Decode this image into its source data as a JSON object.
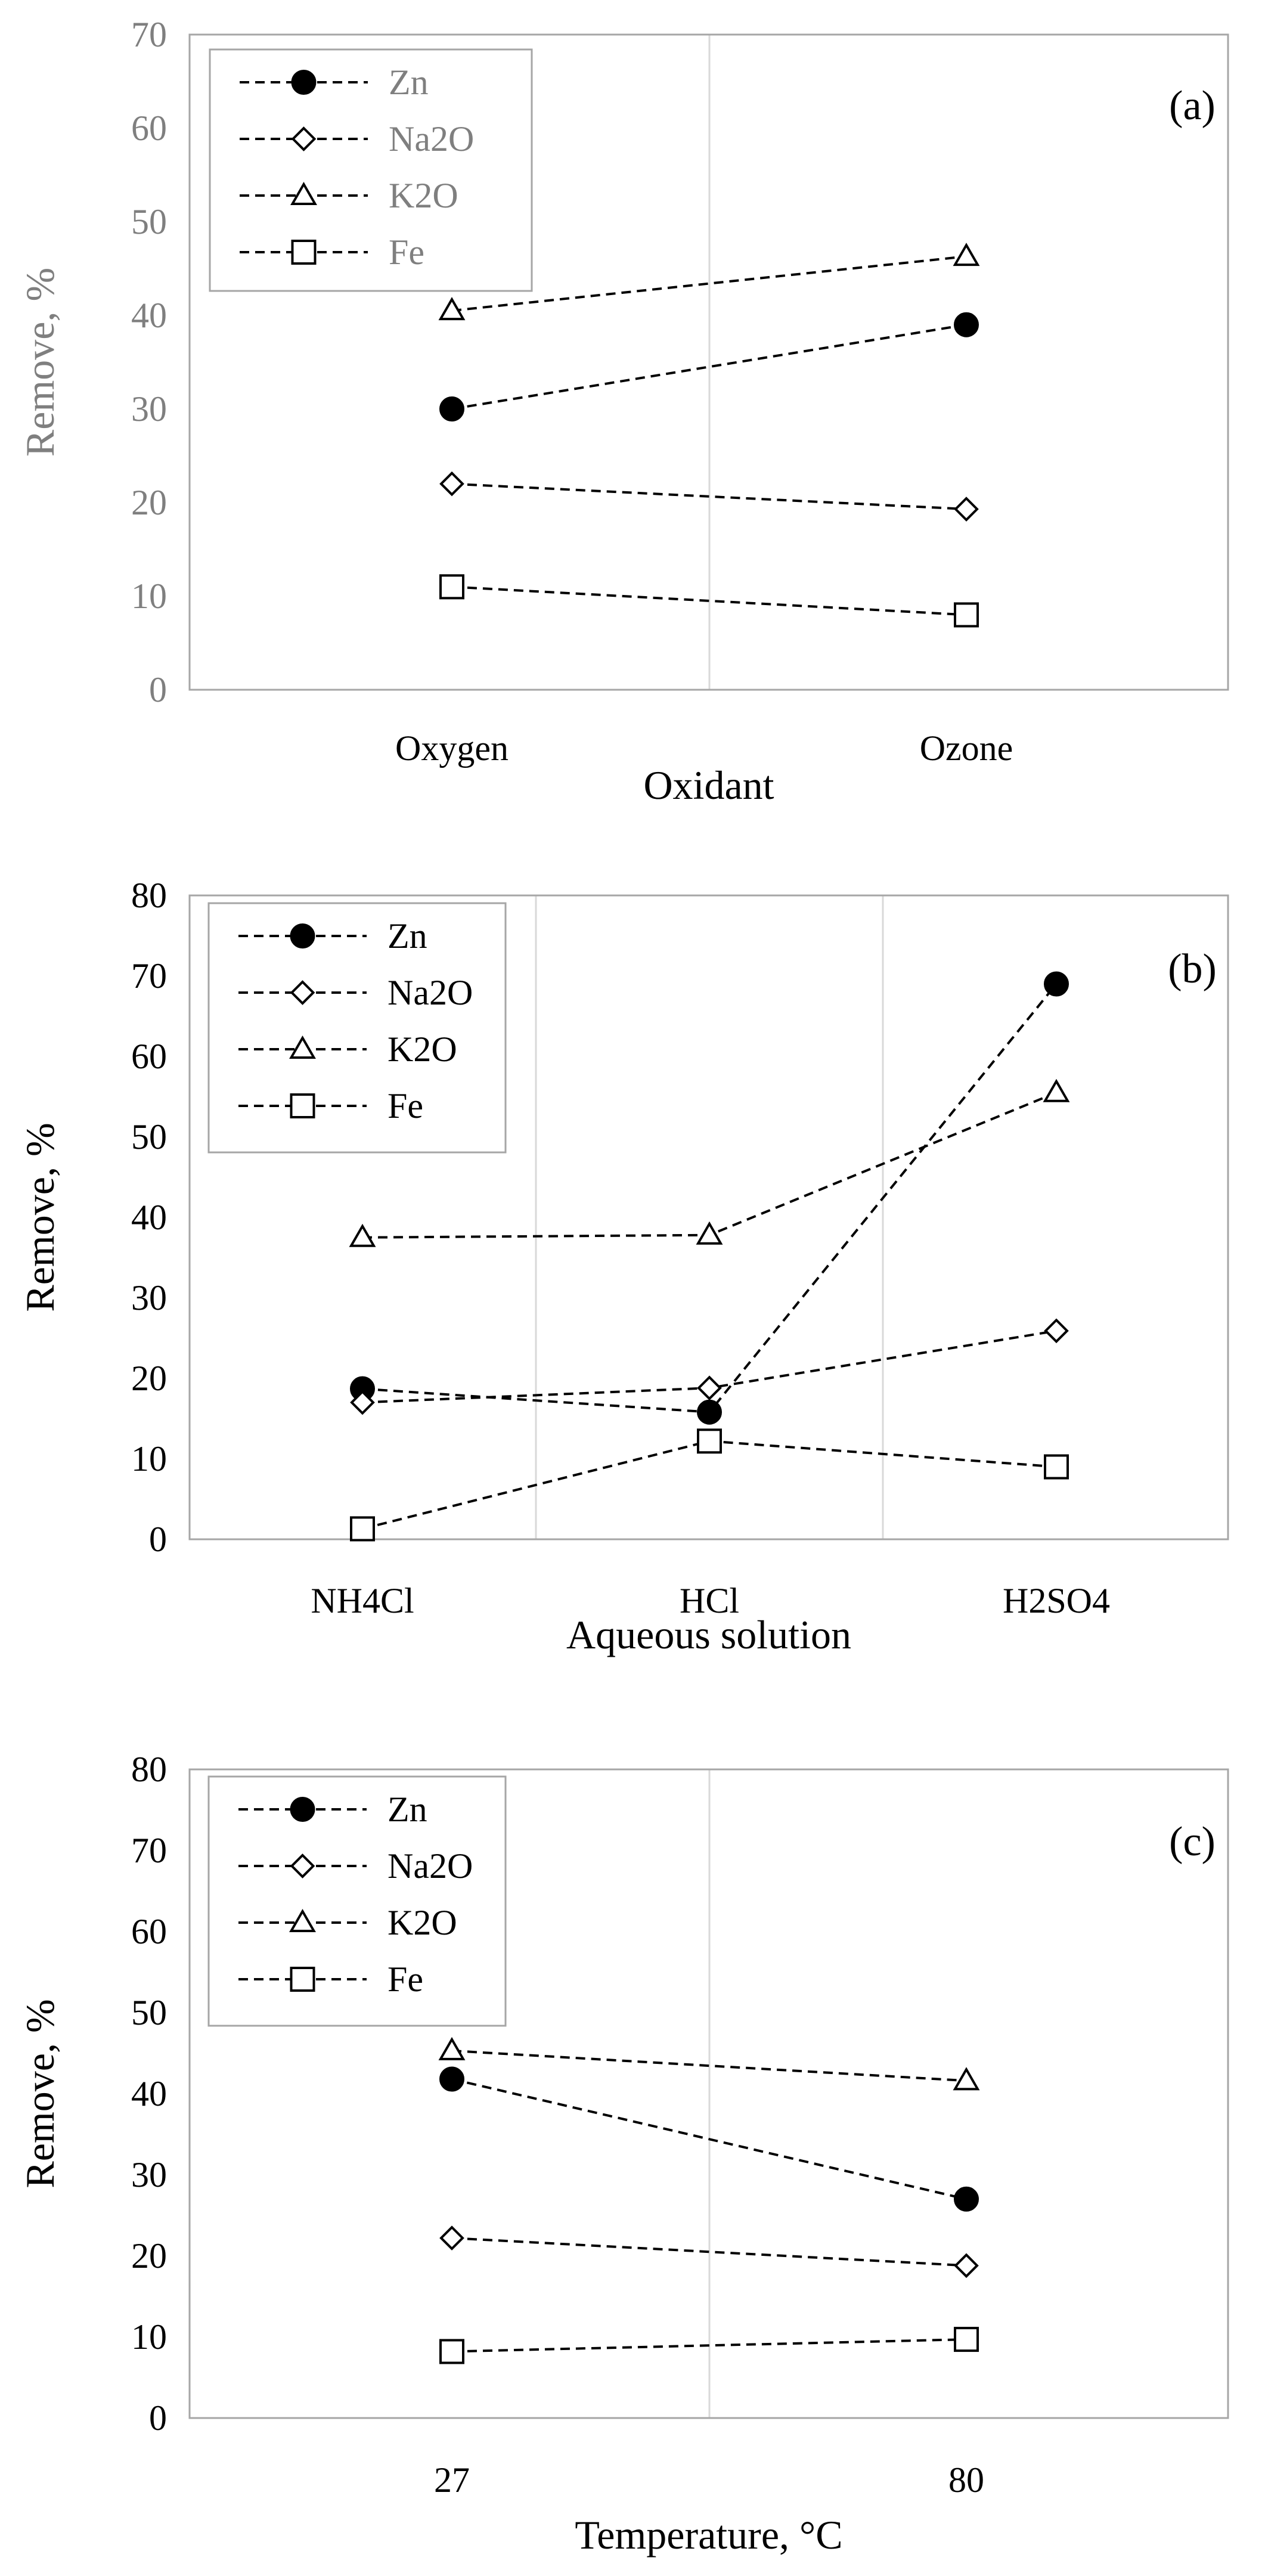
{
  "colors": {
    "frame": "#a6a6a6",
    "grid": "#d9d9d9",
    "series_line": "#000000",
    "text_dark": "#000000",
    "text_gray": "#7f7f7f",
    "marker_fill_solid": "#000000",
    "marker_fill_open": "#ffffff"
  },
  "chart_data": [
    {
      "type": "line",
      "panel_label": "(a)",
      "title": "",
      "xlabel": "Oxidant",
      "ylabel": "Remove, %",
      "categories": [
        "Oxygen",
        "Ozone"
      ],
      "ylim": [
        0,
        70
      ],
      "ytick_step": 10,
      "yticks": [
        "0",
        "10",
        "20",
        "30",
        "40",
        "50",
        "60",
        "70"
      ],
      "tick_color": "gray",
      "legend_position": "top-left",
      "series": [
        {
          "name": "Zn",
          "marker": "filled-circle",
          "values": [
            30,
            39
          ]
        },
        {
          "name": "Na2O",
          "marker": "open-diamond",
          "values": [
            22,
            19.3
          ]
        },
        {
          "name": "K2O",
          "marker": "open-triangle",
          "values": [
            40.5,
            46.3
          ]
        },
        {
          "name": "Fe",
          "marker": "open-square",
          "values": [
            11,
            8
          ]
        }
      ]
    },
    {
      "type": "line",
      "panel_label": "(b)",
      "title": "",
      "xlabel": "Aqueous solution",
      "ylabel": "Remove, %",
      "categories": [
        "NH4Cl",
        "HCl",
        "H2SO4"
      ],
      "ylim": [
        0,
        80
      ],
      "ytick_step": 10,
      "yticks": [
        "0",
        "10",
        "20",
        "30",
        "40",
        "50",
        "60",
        "70",
        "80"
      ],
      "tick_color": "dark",
      "legend_position": "top-left",
      "series": [
        {
          "name": "Zn",
          "marker": "filled-circle",
          "values": [
            18.7,
            15.8,
            69
          ]
        },
        {
          "name": "Na2O",
          "marker": "open-diamond",
          "values": [
            17,
            18.8,
            25.9
          ]
        },
        {
          "name": "K2O",
          "marker": "open-triangle",
          "values": [
            37.5,
            37.8,
            55.5
          ]
        },
        {
          "name": "Fe",
          "marker": "open-square",
          "values": [
            1.3,
            12.2,
            9
          ]
        }
      ]
    },
    {
      "type": "line",
      "panel_label": "(c)",
      "title": "",
      "xlabel": "Temperature, °C",
      "ylabel": "Remove, %",
      "categories": [
        "27",
        "80"
      ],
      "ylim": [
        0,
        80
      ],
      "ytick_step": 10,
      "yticks": [
        "0",
        "10",
        "20",
        "30",
        "40",
        "50",
        "60",
        "70",
        "80"
      ],
      "tick_color": "dark",
      "legend_position": "top-left",
      "series": [
        {
          "name": "Zn",
          "marker": "filled-circle",
          "values": [
            41.8,
            27
          ]
        },
        {
          "name": "Na2O",
          "marker": "open-diamond",
          "values": [
            22.2,
            18.8
          ]
        },
        {
          "name": "K2O",
          "marker": "open-triangle",
          "values": [
            45.3,
            41.6
          ]
        },
        {
          "name": "Fe",
          "marker": "open-square",
          "values": [
            8.2,
            9.7
          ]
        }
      ]
    }
  ]
}
